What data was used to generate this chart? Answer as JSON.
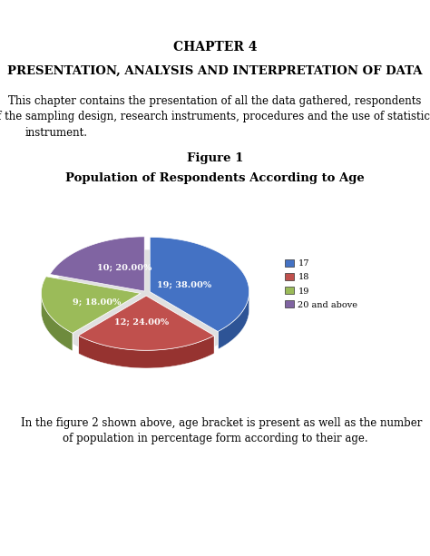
{
  "chapter_title": "CHAPTER 4",
  "section_title": "PRESENTATION, ANALYSIS AND INTERPRETATION OF DATA",
  "body_line1": "This chapter contains the presentation of all the data gathered, respondents",
  "body_line2": "of the sampling design, research instruments, procedures and the use of statistical",
  "body_line3": "instrument.",
  "figure_label": "Figure 1",
  "chart_title": "Population of Respondents According to Age",
  "pie_values": [
    19,
    12,
    9,
    10
  ],
  "pie_labels": [
    "19; 38.00%",
    "12; 24.00%",
    "9; 18.00%",
    "10; 20.00%"
  ],
  "pie_colors": [
    "#4472C4",
    "#C0504D",
    "#9BBB59",
    "#8064A2"
  ],
  "pie_dark_colors": [
    "#2E5496",
    "#963330",
    "#6E8B3D",
    "#5C3F7A"
  ],
  "legend_labels": [
    "17",
    "18",
    "19",
    "20 and above"
  ],
  "caption_line1": "    In the figure 2 shown above, age bracket is present as well as the number",
  "caption_line2": "of population in percentage form according to their age.",
  "background_color": "#ffffff",
  "startangle": 90,
  "explode": [
    0.04,
    0.06,
    0.06,
    0.03
  ],
  "pie_thickness": 0.18
}
